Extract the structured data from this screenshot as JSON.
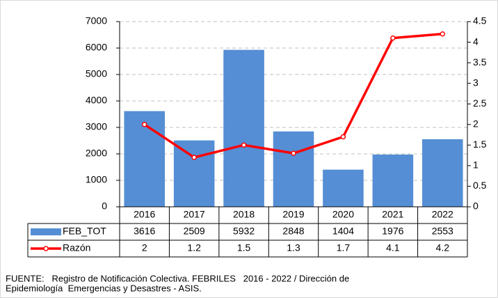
{
  "chart_data": {
    "type": "bar_line_table",
    "categories": [
      "2016",
      "2017",
      "2018",
      "2019",
      "2020",
      "2021",
      "2022"
    ],
    "series": [
      {
        "name": "FEB_TOT",
        "type": "bar",
        "color": "#558ed5",
        "axis": "y",
        "values": [
          3616,
          2509,
          5932,
          2848,
          1404,
          1976,
          2553
        ]
      },
      {
        "name": "Razón",
        "type": "line",
        "color": "#ff0000",
        "axis": "y2",
        "values": [
          2,
          1.2,
          1.5,
          1.3,
          1.7,
          4.1,
          4.2
        ]
      }
    ],
    "ylim": [
      0,
      7000
    ],
    "yticks": [
      0,
      1000,
      2000,
      3000,
      4000,
      5000,
      6000,
      7000
    ],
    "y2lim": [
      0,
      4.5
    ],
    "y2ticks": [
      0,
      0.5,
      1,
      1.5,
      2,
      2.5,
      3,
      3.5,
      4,
      4.5
    ],
    "grid": true,
    "source": [
      "FUENTE:   Registro de Notificación Colectiva. FEBRILES   2016 - 2022 / Dirección de",
      "Epidemiología  Emergencias y Desastres - ASIS."
    ]
  }
}
